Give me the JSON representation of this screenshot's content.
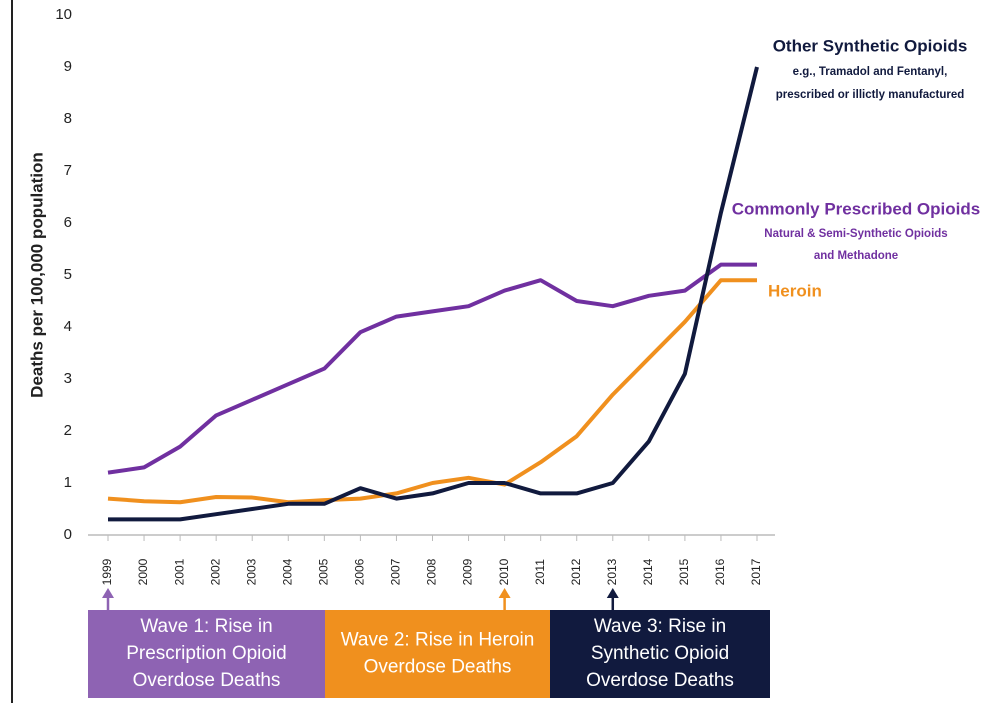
{
  "chart_data": {
    "type": "line",
    "y_label": "Deaths per 100,000 population",
    "categories": [
      "1999",
      "2000",
      "2001",
      "2002",
      "2003",
      "2004",
      "2005",
      "2006",
      "2007",
      "2008",
      "2009",
      "2010",
      "2011",
      "2012",
      "2013",
      "2014",
      "2015",
      "2016",
      "2017"
    ],
    "ylim": [
      0,
      10
    ],
    "yticks": [
      0,
      1,
      2,
      3,
      4,
      5,
      6,
      7,
      8,
      9,
      10
    ],
    "series": [
      {
        "name": "Commonly Prescribed Opioids",
        "description": [
          "Natural & Semi-Synthetic Opioids",
          "and Methadone"
        ],
        "color": "#7030a0",
        "values": [
          1.2,
          1.3,
          1.7,
          2.3,
          2.6,
          2.9,
          3.2,
          3.9,
          4.2,
          4.3,
          4.4,
          4.7,
          4.9,
          4.5,
          4.4,
          4.6,
          4.7,
          5.2,
          5.2
        ]
      },
      {
        "name": "Heroin",
        "description": [],
        "color": "#f0901e",
        "values": [
          0.7,
          0.65,
          0.63,
          0.73,
          0.72,
          0.63,
          0.67,
          0.7,
          0.8,
          1.0,
          1.1,
          0.97,
          1.4,
          1.9,
          2.7,
          3.4,
          4.1,
          4.9,
          4.9
        ]
      },
      {
        "name": "Other Synthetic Opioids",
        "description": [
          "e.g., Tramadol and Fentanyl,",
          "prescribed or illictly manufactured"
        ],
        "color": "#111a3e",
        "values": [
          0.3,
          0.3,
          0.3,
          0.4,
          0.5,
          0.6,
          0.6,
          0.9,
          0.7,
          0.8,
          1.0,
          1.0,
          0.8,
          0.8,
          1.0,
          1.8,
          3.1,
          6.2,
          9.0
        ]
      }
    ],
    "waves": [
      {
        "lines": [
          "Wave 1: Rise in",
          "Prescription Opioid",
          "Overdose Deaths"
        ],
        "color": "#8e63b3"
      },
      {
        "lines": [
          "Wave 2: Rise in Heroin",
          "Overdose Deaths"
        ],
        "color": "#f0901e"
      },
      {
        "lines": [
          "Wave 3: Rise in",
          "Synthetic Opioid",
          "Overdose Deaths"
        ],
        "color": "#111a3e"
      }
    ]
  }
}
